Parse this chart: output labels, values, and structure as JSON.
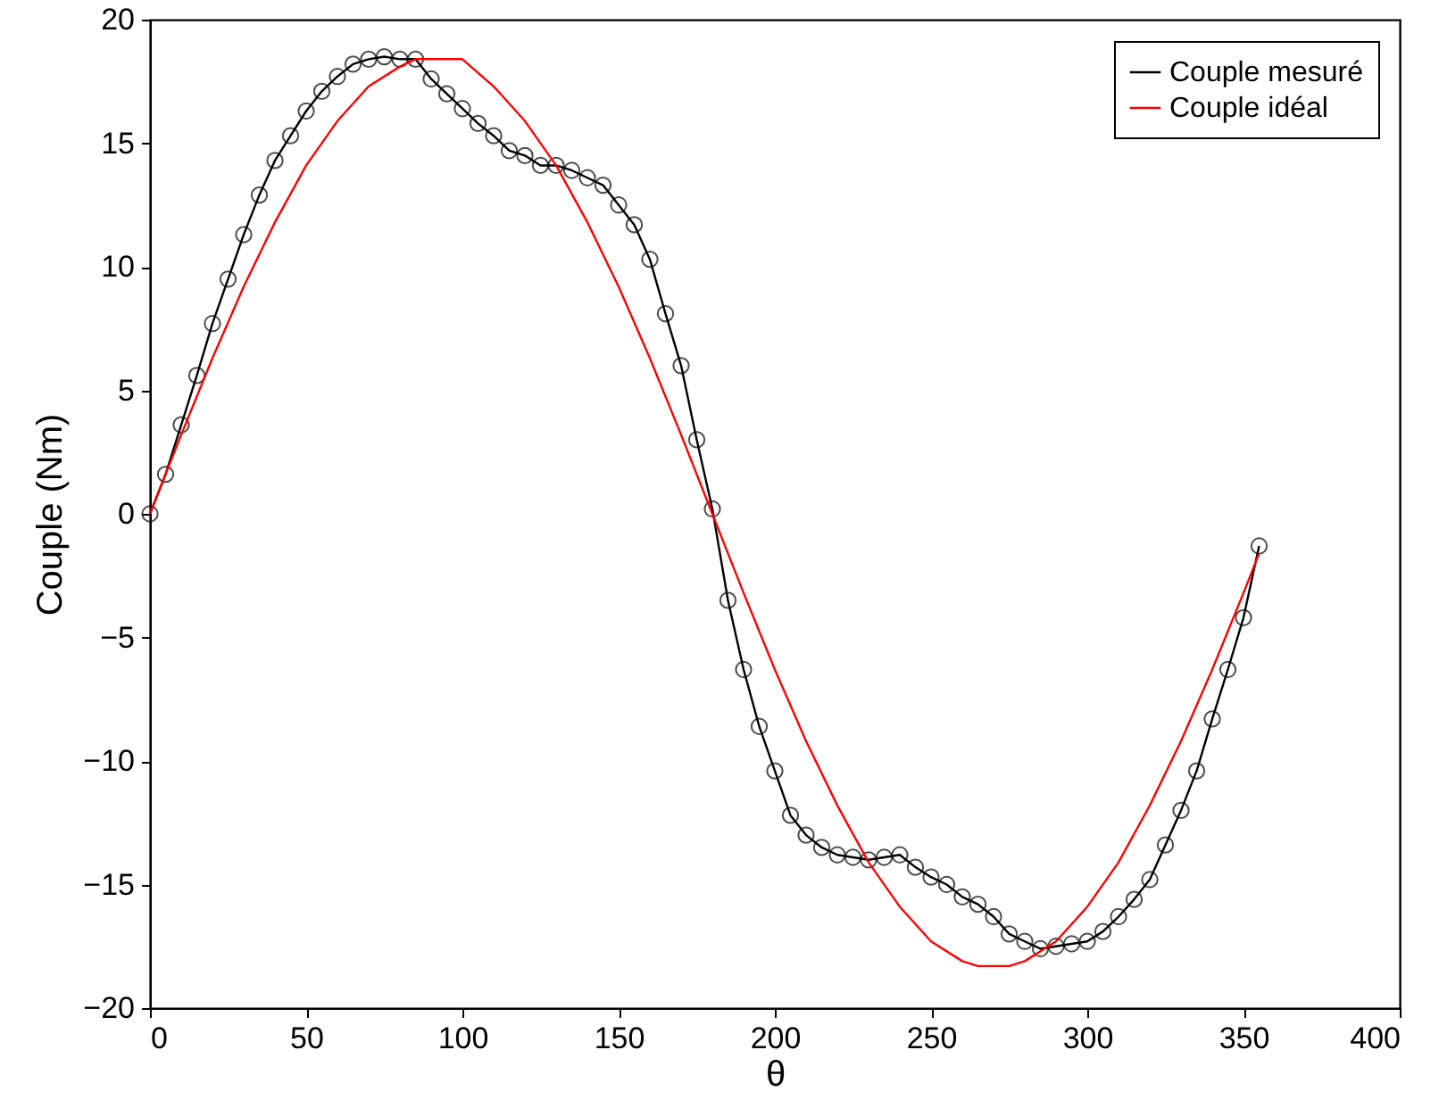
{
  "chart_data": {
    "type": "line",
    "xlabel": "θ",
    "ylabel": "Couple (Nm)",
    "xlim": [
      0,
      400
    ],
    "xticks": [
      0,
      50,
      100,
      150,
      200,
      250,
      300,
      350,
      400
    ],
    "ylim": [
      -20,
      20
    ],
    "yticks": [
      -20,
      -15,
      -10,
      -5,
      0,
      5,
      10,
      15,
      20
    ],
    "grid": false,
    "legend": "top right",
    "series": [
      {
        "name": "Couple mesuré",
        "color": "#000000",
        "marker": "circle",
        "x": [
          0,
          5,
          10,
          15,
          20,
          25,
          30,
          35,
          40,
          45,
          50,
          55,
          60,
          65,
          70,
          75,
          80,
          85,
          90,
          95,
          100,
          105,
          110,
          115,
          120,
          125,
          130,
          135,
          140,
          145,
          150,
          155,
          160,
          165,
          170,
          175,
          180,
          185,
          190,
          195,
          200,
          205,
          210,
          215,
          220,
          225,
          230,
          235,
          240,
          245,
          250,
          255,
          260,
          265,
          270,
          275,
          280,
          285,
          290,
          295,
          300,
          305,
          310,
          315,
          320,
          325,
          330,
          335,
          340,
          345,
          350,
          355
        ],
        "values": [
          0,
          1.6,
          3.6,
          5.6,
          7.7,
          9.5,
          11.3,
          12.9,
          14.3,
          15.3,
          16.3,
          17.1,
          17.7,
          18.2,
          18.4,
          18.5,
          18.4,
          18.4,
          17.6,
          17.0,
          16.4,
          15.8,
          15.3,
          14.7,
          14.5,
          14.1,
          14.1,
          13.9,
          13.6,
          13.3,
          12.5,
          11.7,
          10.3,
          8.1,
          6.0,
          3.0,
          0.2,
          -3.5,
          -6.3,
          -8.6,
          -10.4,
          -12.2,
          -13.0,
          -13.5,
          -13.8,
          -13.9,
          -14.0,
          -13.9,
          -13.8,
          -14.3,
          -14.7,
          -15.0,
          -15.5,
          -15.8,
          -16.3,
          -17.0,
          -17.3,
          -17.6,
          -17.5,
          -17.4,
          -17.3,
          -16.9,
          -16.3,
          -15.6,
          -14.8,
          -13.4,
          -12.0,
          -10.4,
          -8.3,
          -6.3,
          -4.2,
          -1.3
        ]
      },
      {
        "name": "Couple idéal",
        "color": "#ff0000",
        "marker": "none",
        "x": [
          0,
          10,
          20,
          30,
          40,
          50,
          60,
          70,
          80,
          85,
          90,
          95,
          100,
          110,
          120,
          130,
          140,
          150,
          160,
          170,
          180,
          190,
          200,
          210,
          220,
          230,
          240,
          250,
          260,
          265,
          270,
          275,
          280,
          290,
          300,
          310,
          320,
          330,
          340,
          350,
          355
        ],
        "values": [
          0,
          3.2,
          6.3,
          9.2,
          11.8,
          14.1,
          15.9,
          17.3,
          18.1,
          18.4,
          18.4,
          18.4,
          18.4,
          17.3,
          15.9,
          14.1,
          11.8,
          9.2,
          6.3,
          3.2,
          0,
          -3.2,
          -6.3,
          -9.2,
          -11.8,
          -14.1,
          -15.9,
          -17.3,
          -18.1,
          -18.3,
          -18.3,
          -18.3,
          -18.1,
          -17.3,
          -15.9,
          -14.1,
          -11.8,
          -9.2,
          -6.3,
          -3.2,
          -1.6
        ]
      }
    ]
  }
}
